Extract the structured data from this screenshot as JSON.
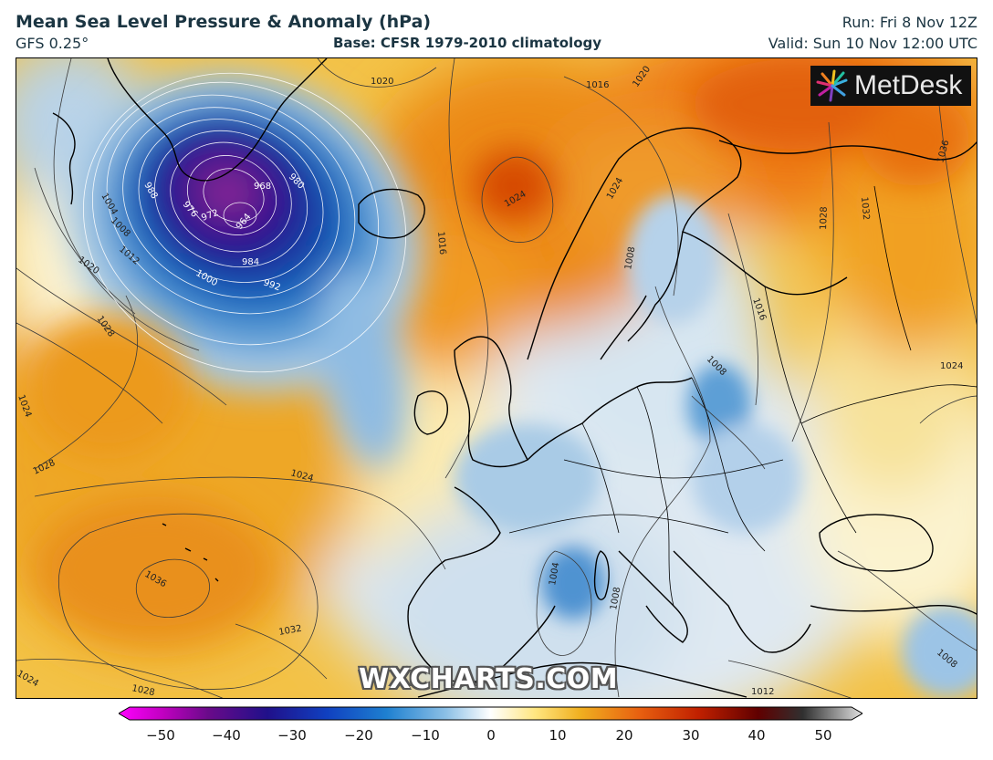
{
  "header": {
    "title": "Mean Sea Level Pressure & Anomaly (hPa)",
    "model": "GFS 0.25°",
    "base": "Base: CFSR 1979-2010 climatology",
    "run": "Run: Fri 8 Nov 12Z",
    "valid": "Valid: Sun 10 Nov 12:00 UTC"
  },
  "logo": {
    "text": "MetDesk",
    "icon": "metdesk-starburst-icon"
  },
  "watermark": "WXCHARTS.COM",
  "colorbar": {
    "ticks": [
      "−50",
      "−40",
      "−30",
      "−20",
      "−10",
      "0",
      "10",
      "20",
      "30",
      "40",
      "50"
    ],
    "colors": [
      "#ff00ff",
      "#8b008b",
      "#2a0a8a",
      "#1030c0",
      "#1e78d0",
      "#9cc8e8",
      "#ffffff",
      "#ffe680",
      "#f0a500",
      "#e06000",
      "#c01800",
      "#700000",
      "#2a2a2a",
      "#d0d0d0"
    ]
  },
  "isobar_labels": {
    "l1020a": "1020",
    "l1016a": "1016",
    "l1020b": "1020",
    "l1036a": "1036",
    "l1004a": "1004",
    "l1008a": "1008",
    "l1012a": "1012",
    "l1020c": "1020",
    "l988": "988",
    "l976": "976",
    "l972": "972",
    "l968": "968",
    "l980": "980",
    "l964": "964",
    "l984": "984",
    "l992": "992",
    "l1000": "1000",
    "l1024a": "1024",
    "l1016b": "1016",
    "l1024b": "1024",
    "l1028a": "1028",
    "l1032a": "1032",
    "l1008b": "1008",
    "l1016c": "1016",
    "l1008c": "1008",
    "l1028b": "1028",
    "l1024c": "1024",
    "l1024d": "1024",
    "l1028c": "1028",
    "l1024e": "1024",
    "l1036b": "1036",
    "l1032b": "1032",
    "l1004b": "1004",
    "l1008d": "1008",
    "l1012b": "1012",
    "l1008e": "1008",
    "l1024f": "1024",
    "l1028d": "1028"
  }
}
